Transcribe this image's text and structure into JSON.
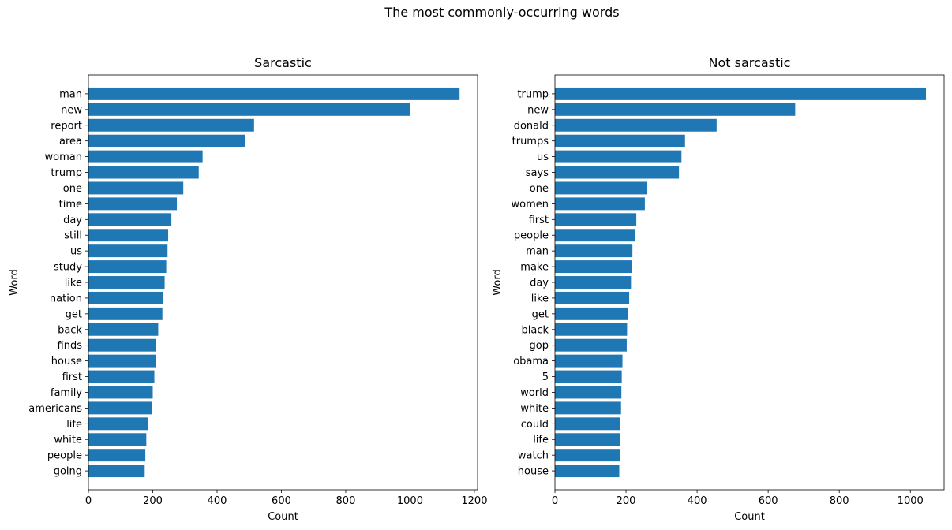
{
  "figure": {
    "title": "The most commonly-occurring words"
  },
  "chart_data": [
    {
      "type": "bar",
      "orientation": "horizontal",
      "title": "Sarcastic",
      "xlabel": "Count",
      "ylabel": "Word",
      "xlim": [
        0,
        1210
      ],
      "xticks": [
        0,
        200,
        400,
        600,
        800,
        1000,
        1200
      ],
      "bar_color": "#1f77b4",
      "categories": [
        "man",
        "new",
        "report",
        "area",
        "woman",
        "trump",
        "one",
        "time",
        "day",
        "still",
        "us",
        "study",
        "like",
        "nation",
        "get",
        "back",
        "finds",
        "house",
        "first",
        "family",
        "americans",
        "life",
        "white",
        "people",
        "going"
      ],
      "values": [
        1154,
        1000,
        515,
        488,
        355,
        343,
        295,
        275,
        258,
        248,
        246,
        242,
        237,
        232,
        230,
        217,
        210,
        210,
        205,
        200,
        197,
        185,
        180,
        177,
        175
      ]
    },
    {
      "type": "bar",
      "orientation": "horizontal",
      "title": "Not sarcastic",
      "xlabel": "Count",
      "ylabel": "Word",
      "xlim": [
        0,
        1095
      ],
      "xticks": [
        0,
        200,
        400,
        600,
        800,
        1000
      ],
      "bar_color": "#1f77b4",
      "categories": [
        "trump",
        "new",
        "donald",
        "trumps",
        "us",
        "says",
        "one",
        "women",
        "first",
        "people",
        "man",
        "make",
        "day",
        "like",
        "get",
        "black",
        "gop",
        "obama",
        "5",
        "world",
        "white",
        "could",
        "life",
        "watch",
        "house"
      ],
      "values": [
        1044,
        676,
        455,
        366,
        356,
        349,
        260,
        253,
        229,
        226,
        218,
        217,
        214,
        209,
        205,
        203,
        202,
        190,
        188,
        187,
        186,
        184,
        183,
        183,
        181
      ]
    }
  ]
}
